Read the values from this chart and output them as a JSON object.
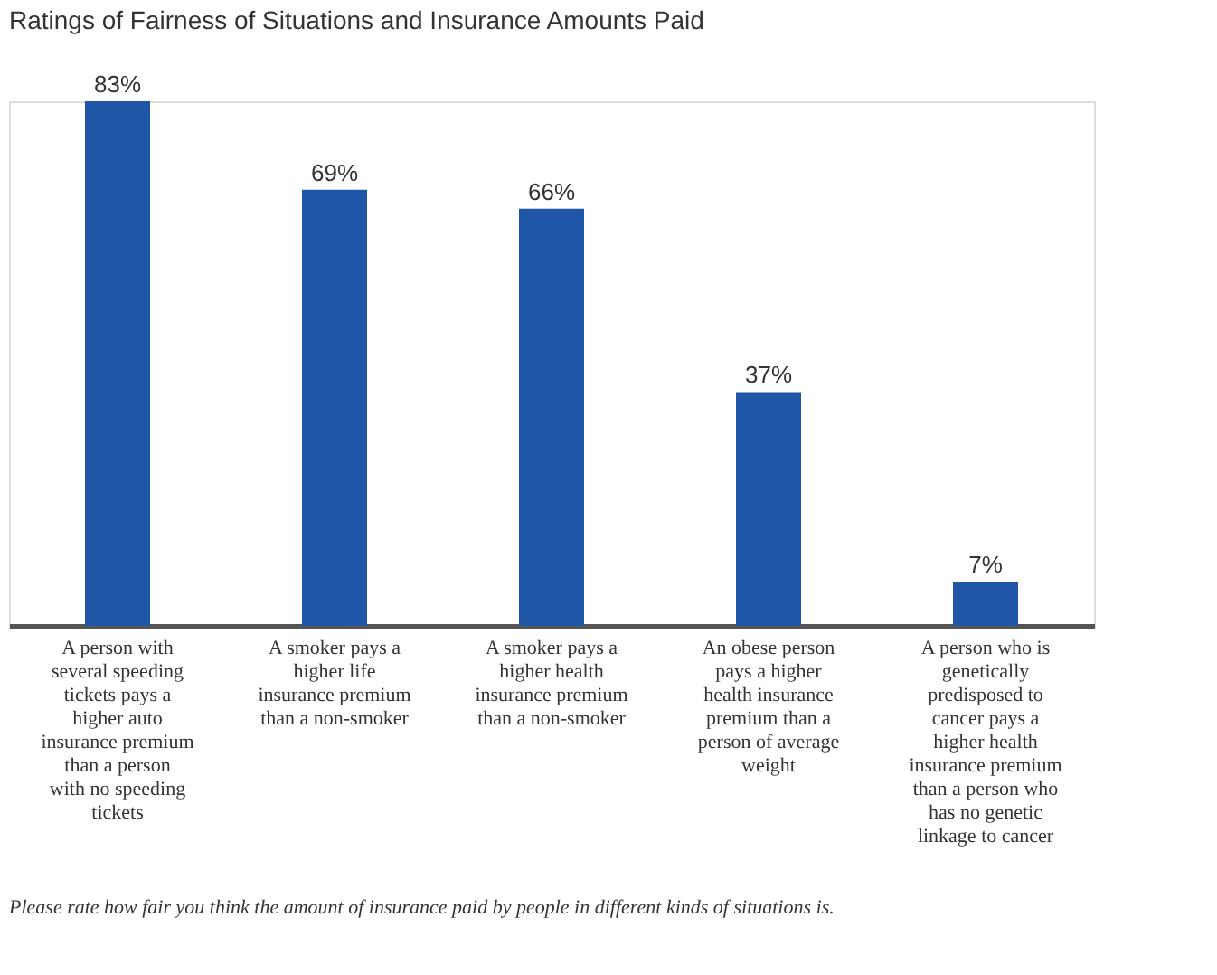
{
  "chart_data": {
    "type": "bar",
    "title": "Ratings of Fairness of Situations and Insurance Amounts Paid",
    "categories": [
      "A person with several speeding tickets pays a higher auto insurance premium than a person with no speeding tickets",
      "A smoker pays a higher life insurance premium than a non-smoker",
      "A smoker pays a higher health insurance premium than a non-smoker",
      "An obese person pays a higher health insurance premium than a person of average weight",
      "A person who is genetically predisposed to cancer pays a higher health insurance premium than a person who has no genetic linkage to cancer"
    ],
    "values": [
      83,
      69,
      66,
      37,
      7
    ],
    "value_labels": [
      "83%",
      "69%",
      "66%",
      "37%",
      "7%"
    ],
    "color": "#1f56a8",
    "annotations": [
      "Please rate how fair you think the amount of insurance paid by people in different kinds of situations is."
    ]
  }
}
